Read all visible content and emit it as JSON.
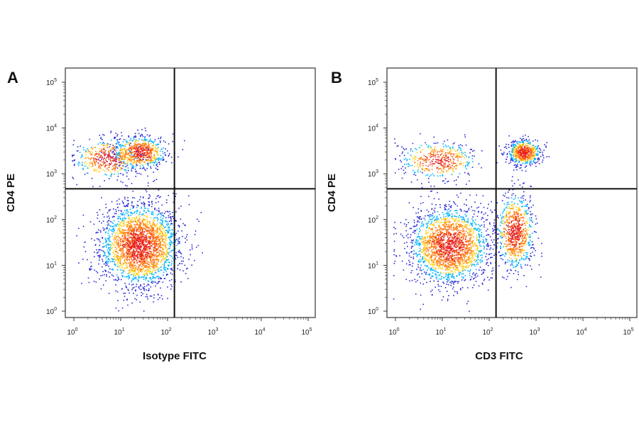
{
  "chart_data": [
    {
      "type": "scatter",
      "panel_label": "A",
      "xlabel": "Isotype FITC",
      "ylabel": "CD4 PE",
      "x_scale": "log",
      "y_scale": "log",
      "xlim": [
        1,
        100000
      ],
      "ylim": [
        1,
        100000
      ],
      "x_ticks": [
        1,
        10,
        100,
        1000,
        10000,
        100000
      ],
      "y_ticks": [
        1,
        10,
        100,
        1000,
        10000,
        100000
      ],
      "x_tick_labels": [
        {
          "base": "10",
          "exp": "0"
        },
        {
          "base": "10",
          "exp": "1"
        },
        {
          "base": "10",
          "exp": "2"
        },
        {
          "base": "10",
          "exp": "3"
        },
        {
          "base": "10",
          "exp": "4"
        },
        {
          "base": "10",
          "exp": "5"
        }
      ],
      "y_tick_labels": [
        {
          "base": "10",
          "exp": "0"
        },
        {
          "base": "10",
          "exp": "1"
        },
        {
          "base": "10",
          "exp": "2"
        },
        {
          "base": "10",
          "exp": "3"
        },
        {
          "base": "10",
          "exp": "4"
        },
        {
          "base": "10",
          "exp": "5"
        }
      ],
      "quadrant_gate": {
        "x": 140,
        "y": 470
      },
      "populations": [
        {
          "center": [
            25,
            28
          ],
          "spread_decades": [
            0.42,
            0.45
          ],
          "events": 2600
        },
        {
          "center": [
            25,
            3000
          ],
          "spread_decades": [
            0.28,
            0.18
          ],
          "events": 700
        },
        {
          "center": [
            5,
            2200
          ],
          "spread_decades": [
            0.35,
            0.22
          ],
          "events": 400
        }
      ],
      "density_colors": [
        "#2a2ad6",
        "#00b4ff",
        "#3fd28a",
        "#b6e636",
        "#ffd21e",
        "#ff7a14",
        "#e81f1f"
      ]
    },
    {
      "type": "scatter",
      "panel_label": "B",
      "xlabel": "CD3 FITC",
      "ylabel": "CD4 PE",
      "x_scale": "log",
      "y_scale": "log",
      "xlim": [
        1,
        100000
      ],
      "ylim": [
        1,
        100000
      ],
      "x_ticks": [
        1,
        10,
        100,
        1000,
        10000,
        100000
      ],
      "y_ticks": [
        1,
        10,
        100,
        1000,
        10000,
        100000
      ],
      "x_tick_labels": [
        {
          "base": "10",
          "exp": "0"
        },
        {
          "base": "10",
          "exp": "1"
        },
        {
          "base": "10",
          "exp": "2"
        },
        {
          "base": "10",
          "exp": "3"
        },
        {
          "base": "10",
          "exp": "4"
        },
        {
          "base": "10",
          "exp": "5"
        }
      ],
      "y_tick_labels": [
        {
          "base": "10",
          "exp": "0"
        },
        {
          "base": "10",
          "exp": "1"
        },
        {
          "base": "10",
          "exp": "2"
        },
        {
          "base": "10",
          "exp": "3"
        },
        {
          "base": "10",
          "exp": "4"
        },
        {
          "base": "10",
          "exp": "5"
        }
      ],
      "quadrant_gate": {
        "x": 140,
        "y": 470
      },
      "populations": [
        {
          "center": [
            14,
            28
          ],
          "spread_decades": [
            0.42,
            0.42
          ],
          "events": 2100
        },
        {
          "center": [
            350,
            55
          ],
          "spread_decades": [
            0.2,
            0.42
          ],
          "events": 800
        },
        {
          "center": [
            550,
            3000
          ],
          "spread_decades": [
            0.17,
            0.14
          ],
          "events": 650
        },
        {
          "center": [
            8,
            2000
          ],
          "spread_decades": [
            0.4,
            0.2
          ],
          "events": 450
        }
      ],
      "density_colors": [
        "#2a2ad6",
        "#00b4ff",
        "#3fd28a",
        "#b6e636",
        "#ffd21e",
        "#ff7a14",
        "#e81f1f"
      ]
    }
  ]
}
